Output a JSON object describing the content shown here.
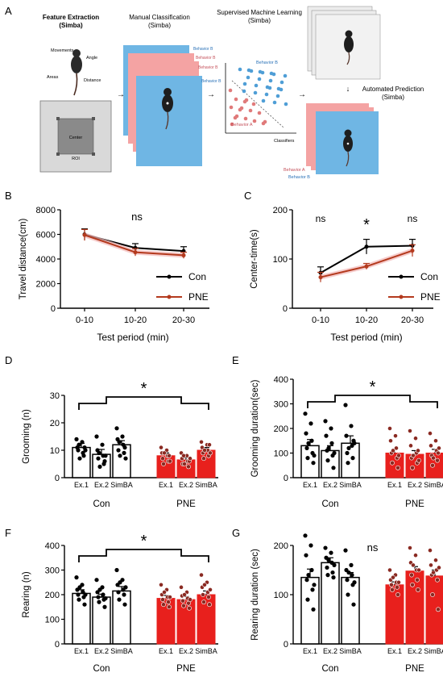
{
  "panel_a": {
    "letter": "A",
    "feature_title": "Feature Extraction",
    "feature_sub": "(Simba)",
    "feature_labels": [
      "Movements",
      "Angle",
      "Areas",
      "Distance"
    ],
    "roi_labels": [
      "Center",
      "ROI"
    ],
    "manual_title": "Manual Classification",
    "manual_sub": "(Simba)",
    "manual_behaviors": [
      "Behavior B",
      "Behavior B",
      "Behavior B",
      "Behavior B"
    ],
    "sml_title": "Supervised Machine Learning",
    "sml_sub": "(Simba)",
    "sml_labels": [
      "Behavior B",
      "Behavior A",
      "Classifiers"
    ],
    "auto_title": "Automated Prediction",
    "auto_sub": "(Simba)",
    "auto_labels": [
      "Behavior A",
      "Behavior B"
    ],
    "colors": {
      "blue_card": "#6fb6e4",
      "pink_card": "#f4a3a3",
      "gray_card": "#ececec",
      "dot_blue": "#4f9ed6",
      "dot_red": "#e07a7a"
    }
  },
  "chart_data": [
    {
      "panel": "B",
      "type": "line",
      "categories": [
        "0-10",
        "10-20",
        "20-30"
      ],
      "xlabel": "Test period (min)",
      "ylabel": "Travel distance(cm)",
      "ylim": [
        0,
        8000
      ],
      "yticks": [
        "0",
        "2000",
        "4000",
        "6000",
        "8000"
      ],
      "legend": "bottom-right",
      "annotations": [
        {
          "text": "ns"
        }
      ],
      "series": [
        {
          "name": "Con",
          "values": [
            6000,
            4900,
            4650
          ],
          "err": [
            450,
            350,
            350
          ],
          "color": "#000000"
        },
        {
          "name": "PNE",
          "values": [
            5950,
            4550,
            4300
          ],
          "err": [
            450,
            300,
            250
          ],
          "color": "#b43a1e"
        }
      ]
    },
    {
      "panel": "C",
      "type": "line",
      "categories": [
        "0-10",
        "10-20",
        "20-30"
      ],
      "xlabel": "Test period (min)",
      "ylabel": "Center-time(s)",
      "ylim": [
        0,
        200
      ],
      "yticks": [
        "0",
        "100",
        "200"
      ],
      "legend": "bottom-right",
      "annotations": [
        {
          "text": "ns"
        },
        {
          "text": "*"
        },
        {
          "text": "ns"
        }
      ],
      "series": [
        {
          "name": "Con",
          "values": [
            72,
            125,
            127
          ],
          "err": [
            12,
            15,
            13
          ],
          "color": "#000000"
        },
        {
          "name": "PNE",
          "values": [
            63,
            85,
            117
          ],
          "err": [
            10,
            6,
            12
          ],
          "color": "#b43a1e"
        }
      ]
    },
    {
      "panel": "D",
      "type": "bar",
      "ylabel": "Grooming (n)",
      "ylim": [
        0,
        30
      ],
      "yticks": [
        "0",
        "10",
        "20",
        "30"
      ],
      "groups": [
        "Con",
        "PNE"
      ],
      "categories": [
        "Ex.1",
        "Ex.2",
        "SimBA"
      ],
      "annotations": [
        {
          "text": "*"
        }
      ],
      "series": [
        {
          "name": "Con",
          "values": [
            11,
            8.5,
            12
          ],
          "err": [
            1.5,
            1.8,
            1.5
          ],
          "points": [
            [
              14,
              13,
              11,
              9,
              10,
              8,
              12,
              11,
              7,
              10
            ],
            [
              15,
              12,
              10,
              8,
              7,
              5,
              9,
              6,
              4,
              8
            ],
            [
              18,
              15,
              14,
              12,
              10,
              9,
              13,
              11,
              8,
              7
            ]
          ]
        },
        {
          "name": "PNE",
          "values": [
            8,
            6.5,
            10
          ],
          "err": [
            1,
            0.8,
            1
          ],
          "points": [
            [
              11,
              10,
              9,
              8,
              7,
              6,
              5,
              8,
              9,
              6
            ],
            [
              9,
              8,
              7,
              6,
              5,
              4,
              8,
              6,
              5,
              7
            ],
            [
              13,
              12,
              11,
              10,
              9,
              8,
              7,
              12,
              10,
              9
            ]
          ]
        }
      ]
    },
    {
      "panel": "E",
      "type": "bar",
      "ylabel": "Grooming  duration(sec)",
      "ylim": [
        0,
        400
      ],
      "yticks": [
        "0",
        "100",
        "200",
        "300",
        "400"
      ],
      "groups": [
        "Con",
        "PNE"
      ],
      "categories": [
        "Ex.1",
        "Ex.2",
        "SimBA"
      ],
      "annotations": [
        {
          "text": "*"
        }
      ],
      "series": [
        {
          "name": "Con",
          "values": [
            130,
            110,
            140
          ],
          "err": [
            25,
            20,
            30
          ],
          "points": [
            [
              260,
              220,
              180,
              150,
              120,
              100,
              80,
              60,
              140,
              90
            ],
            [
              230,
              200,
              170,
              140,
              110,
              90,
              70,
              40,
              120,
              100
            ],
            [
              295,
              210,
              170,
              130,
              100,
              80,
              60,
              150,
              120,
              140
            ]
          ]
        },
        {
          "name": "PNE",
          "values": [
            100,
            95,
            100
          ],
          "err": [
            15,
            15,
            15
          ],
          "points": [
            [
              200,
              170,
              150,
              120,
              100,
              80,
              60,
              40,
              110,
              90
            ],
            [
              190,
              160,
              130,
              100,
              80,
              60,
              40,
              110,
              90,
              70
            ],
            [
              180,
              150,
              130,
              110,
              90,
              70,
              50,
              100,
              80,
              120
            ]
          ]
        }
      ]
    },
    {
      "panel": "F",
      "type": "bar",
      "ylabel": "Rearing (n)",
      "ylim": [
        0,
        400
      ],
      "yticks": [
        "0",
        "100",
        "200",
        "300",
        "400"
      ],
      "groups": [
        "Con",
        "PNE"
      ],
      "categories": [
        "Ex.1",
        "Ex.2",
        "SimBA"
      ],
      "annotations": [
        {
          "text": "*"
        }
      ],
      "series": [
        {
          "name": "Con",
          "values": [
            205,
            190,
            215
          ],
          "err": [
            15,
            12,
            18
          ],
          "points": [
            [
              270,
              240,
              220,
              210,
              200,
              190,
              180,
              160,
              230,
              200
            ],
            [
              260,
              230,
              210,
              200,
              190,
              180,
              170,
              150,
              220,
              185
            ],
            [
              300,
              260,
              240,
              220,
              210,
              200,
              180,
              160,
              250,
              230
            ]
          ]
        },
        {
          "name": "PNE",
          "values": [
            185,
            180,
            200
          ],
          "err": [
            12,
            12,
            15
          ],
          "points": [
            [
              240,
              220,
              200,
              190,
              180,
              170,
              160,
              150,
              210,
              190
            ],
            [
              230,
              210,
              195,
              185,
              175,
              165,
              155,
              145,
              200,
              180
            ],
            [
              280,
              250,
              230,
              210,
              200,
              190,
              170,
              160,
              240,
              220
            ]
          ]
        }
      ]
    },
    {
      "panel": "G",
      "type": "bar",
      "ylabel": "Rearing duration (sec)",
      "ylim": [
        0,
        200
      ],
      "yticks": [
        "0",
        "100",
        "200"
      ],
      "groups": [
        "Con",
        "PNE"
      ],
      "categories": [
        "Ex.1",
        "Ex.2",
        "SimBA"
      ],
      "annotations": [
        {
          "text": "ns"
        }
      ],
      "series": [
        {
          "name": "Con",
          "values": [
            135,
            165,
            135
          ],
          "err": [
            17,
            10,
            10
          ],
          "points": [
            [
              220,
              200,
              180,
              150,
              130,
              110,
              90,
              70,
              140,
              120
            ],
            [
              195,
              185,
              175,
              165,
              155,
              145,
              140,
              135,
              170,
              160
            ],
            [
              190,
              160,
              150,
              140,
              130,
              120,
              100,
              80,
              145,
              125
            ]
          ]
        },
        {
          "name": "PNE",
          "values": [
            120,
            148,
            138
          ],
          "err": [
            6,
            9,
            12
          ],
          "points": [
            [
              150,
              140,
              130,
              125,
              120,
              115,
              110,
              100,
              135,
              125
            ],
            [
              195,
              180,
              165,
              150,
              140,
              130,
              120,
              110,
              160,
              150
            ],
            [
              190,
              170,
              160,
              150,
              140,
              130,
              100,
              70,
              145,
              155
            ]
          ]
        }
      ]
    }
  ]
}
